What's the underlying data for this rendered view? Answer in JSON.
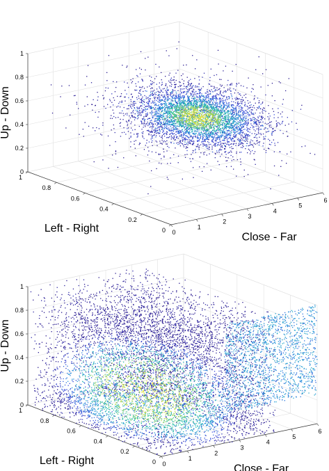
{
  "chart_data": [
    {
      "type": "scatter",
      "subtype": "3d-density-scatter",
      "title": "",
      "zlabel": "Up - Down",
      "ylabel": "Left - Right",
      "xlabel": "Close - Far",
      "xlim": [
        0,
        6
      ],
      "ylim": [
        0,
        1
      ],
      "zlim": [
        0,
        1
      ],
      "xticks": [
        "0",
        "1",
        "2",
        "3",
        "4",
        "5",
        "6"
      ],
      "yticks": [
        "0",
        "0.2",
        "0.4",
        "0.6",
        "0.8",
        "1"
      ],
      "zticks": [
        "0",
        "0.2",
        "0.4",
        "0.6",
        "0.8",
        "1"
      ],
      "grid": true,
      "colormap": [
        "#2a1a8f",
        "#3b4fe0",
        "#1f96d9",
        "#27c2a6",
        "#a8d34a",
        "#f5e733"
      ],
      "distribution": {
        "shape": "ellipsoid-cluster",
        "center": {
          "x": 3.6,
          "y": 0.45,
          "z": 0.55
        },
        "spread": {
          "x": 1.5,
          "y": 0.28,
          "z": 0.09
        },
        "scattered_fraction": 0.18
      }
    },
    {
      "type": "scatter",
      "subtype": "3d-density-scatter",
      "title": "",
      "zlabel": "Up - Down",
      "ylabel": "Left - Right",
      "xlabel": "Close - Far",
      "xlim": [
        0,
        6
      ],
      "ylim": [
        0,
        1
      ],
      "zlim": [
        0,
        1
      ],
      "xticks": [
        "0",
        "1",
        "2",
        "3",
        "4",
        "5",
        "6"
      ],
      "yticks": [
        "0",
        "0.2",
        "0.4",
        "0.6",
        "0.8",
        "1"
      ],
      "zticks": [
        "0",
        "0.2",
        "0.4",
        "0.6",
        "0.8",
        "1"
      ],
      "grid": true,
      "colormap": [
        "#2a1a8f",
        "#3b4fe0",
        "#1f96d9",
        "#27c2a6",
        "#a8d34a",
        "#f5e733"
      ],
      "distribution": {
        "shape": "volume-fill-with-back-wall",
        "dense_region": {
          "x": [
            0.5,
            3.5
          ],
          "y": [
            0.1,
            0.9
          ],
          "z": [
            0.05,
            0.45
          ]
        },
        "back_wall": {
          "y": 0,
          "x": [
            2.5,
            6
          ],
          "z": [
            0.25,
            1
          ]
        }
      }
    }
  ]
}
